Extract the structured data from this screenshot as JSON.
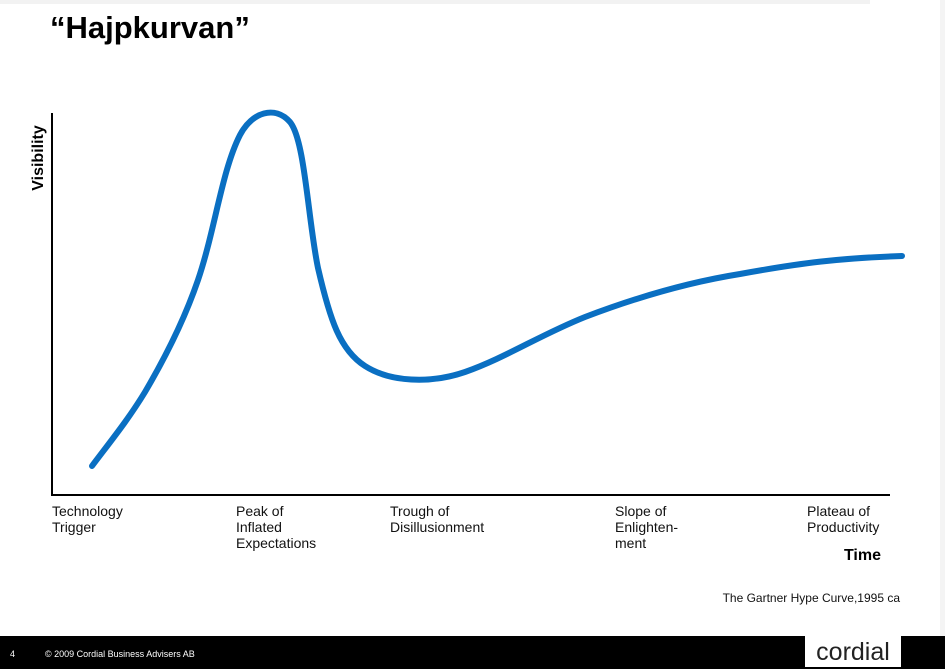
{
  "title": "“Hajpkurvan”",
  "y_axis_label": "Visibility",
  "x_axis_label": "Time",
  "phases": [
    [
      "Technology",
      "Trigger"
    ],
    [
      "Peak of",
      "Inflated",
      "Expectations"
    ],
    [
      "Trough of",
      "Disillusionment"
    ],
    [
      "Slope of",
      "Enlighten-",
      "ment"
    ],
    [
      "Plateau of",
      "Productivity"
    ]
  ],
  "caption": "The Gartner Hype Curve,1995 ca",
  "footer": {
    "page_number": "4",
    "copyright": "© 2009 Cordial Business Advisers AB",
    "logo": "cordial"
  }
}
